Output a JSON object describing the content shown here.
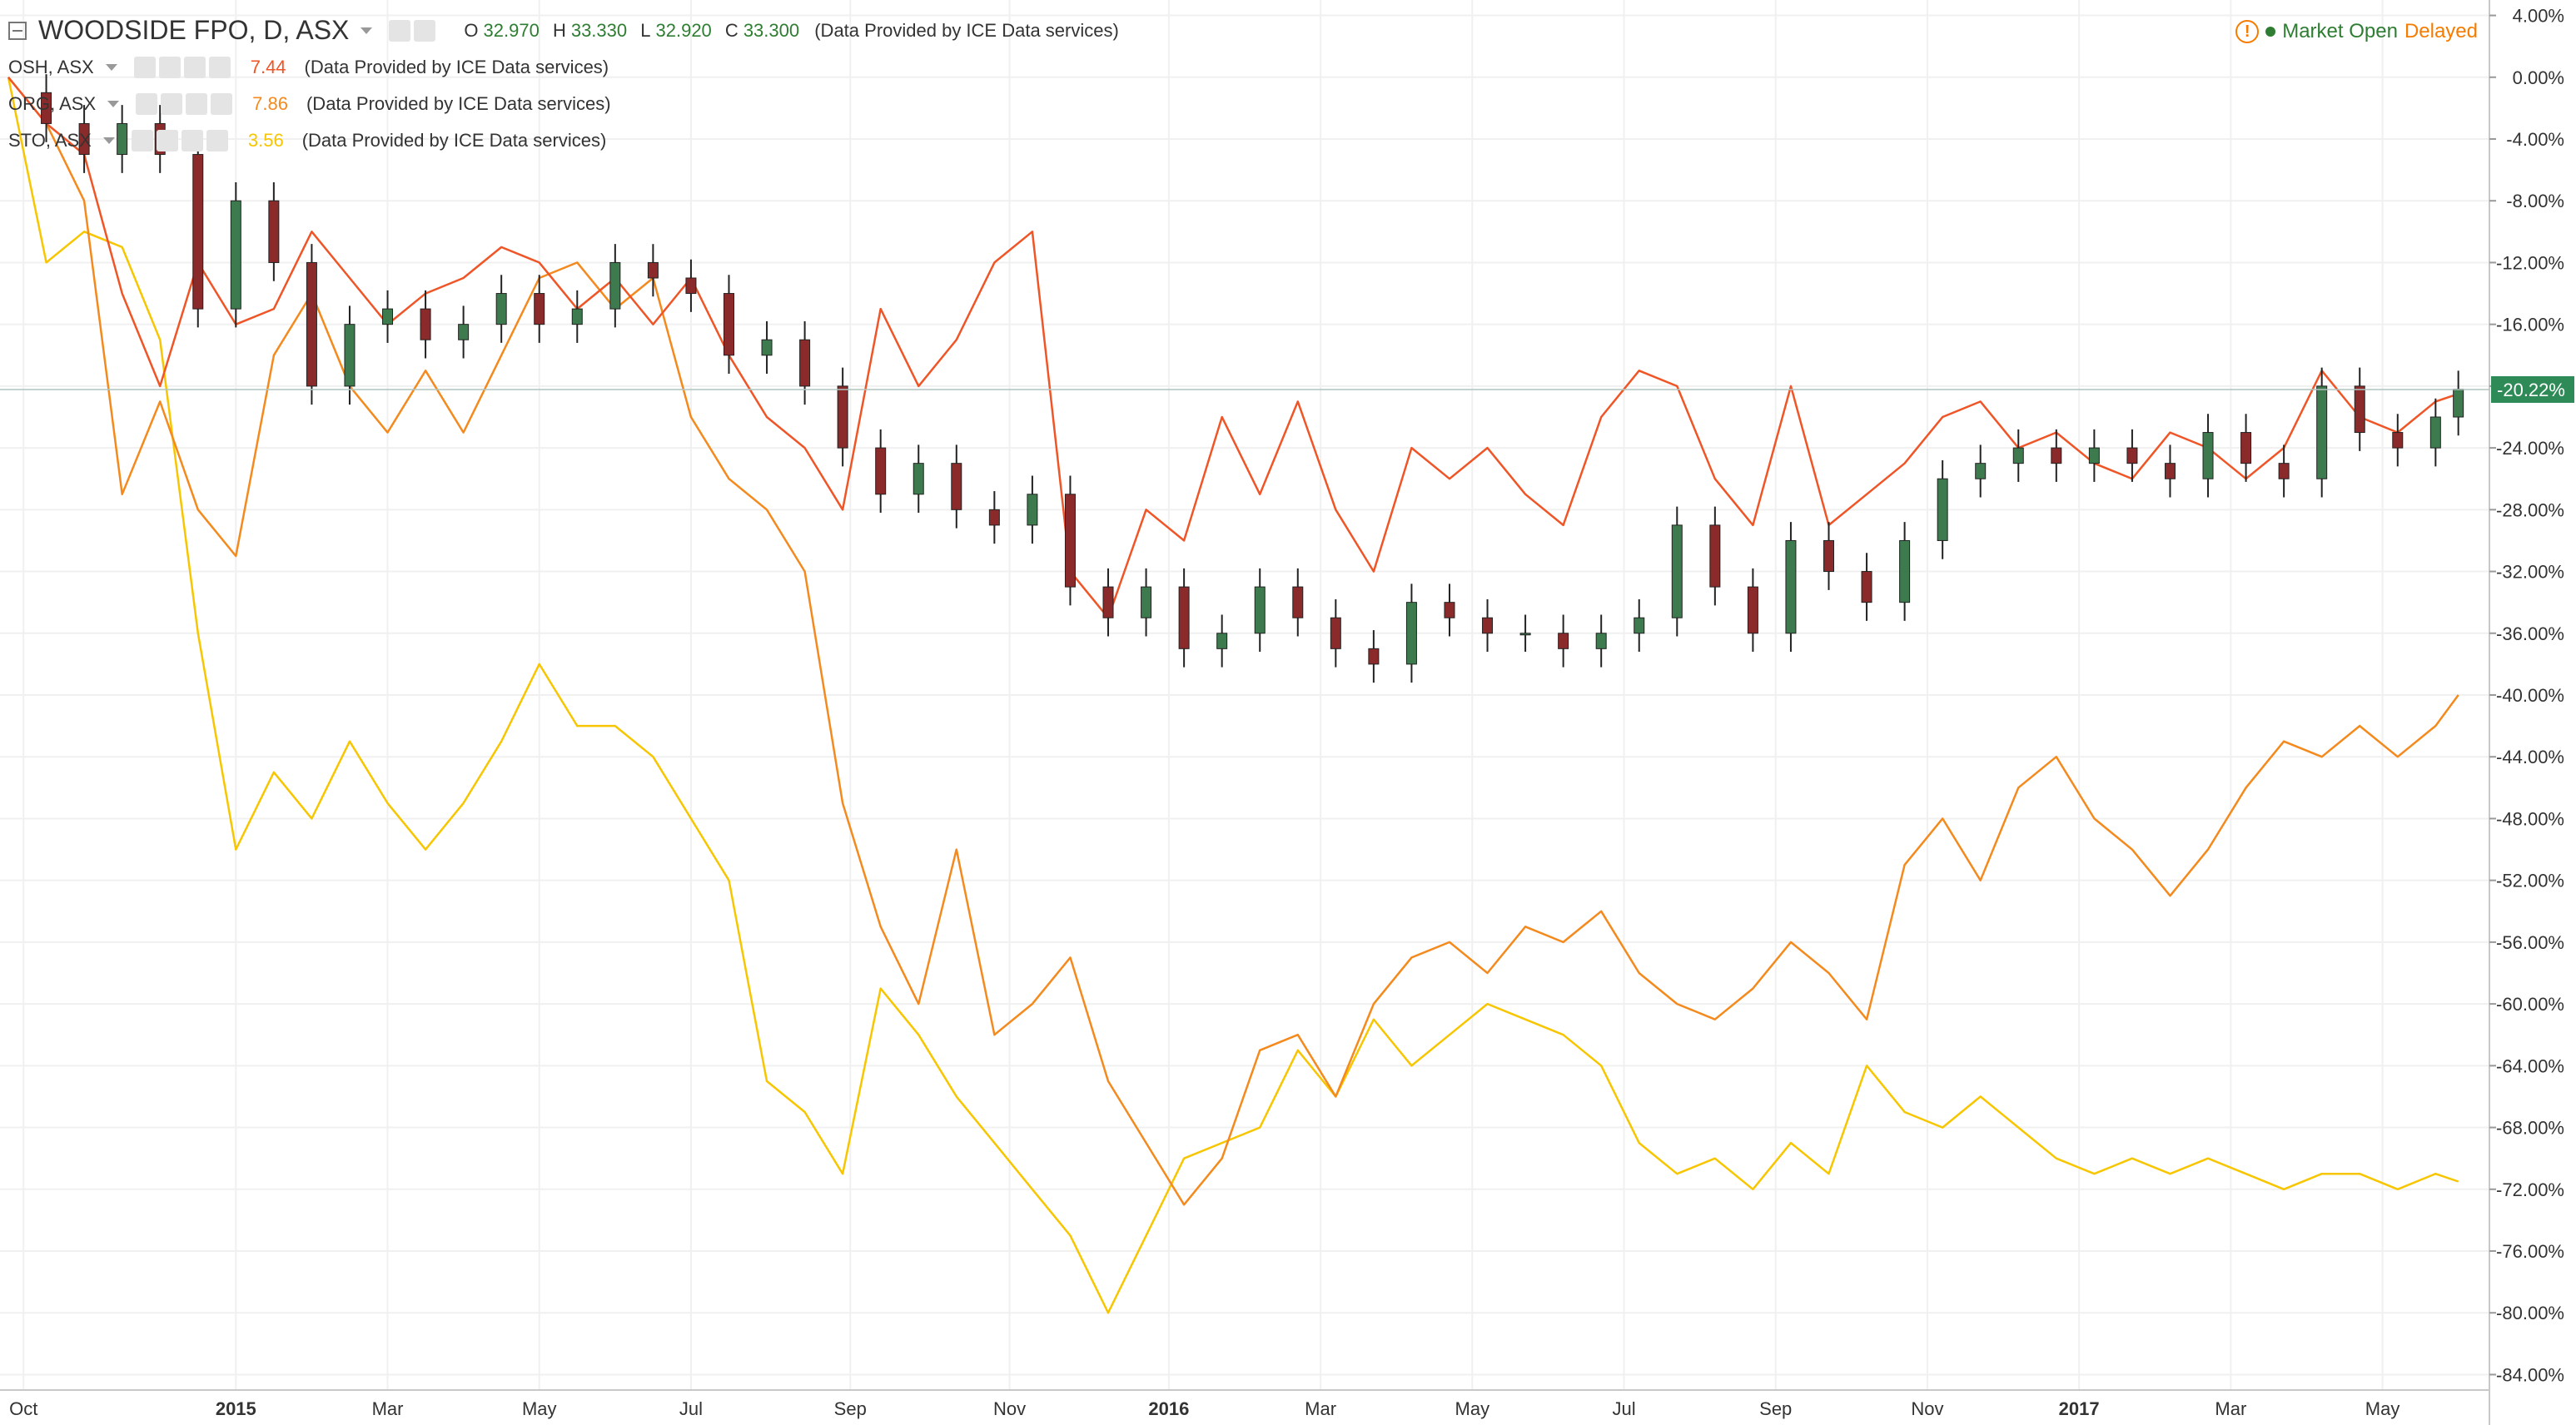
{
  "colors": {
    "accent_green": "#2e7d32",
    "up_candle": "#3d7a4e",
    "down_candle": "#8b2a2a",
    "osh_line": "#ef5526",
    "org_line": "#f48a1d",
    "sto_line": "#f7c600",
    "grid": "#f0f0f0"
  },
  "header": {
    "symbol": "WOODSIDE FPO, D, ASX",
    "ohlc": {
      "o_label": "O",
      "o": "32.970",
      "h_label": "H",
      "h": "33.330",
      "l_label": "L",
      "l": "32.920",
      "c_label": "C",
      "c": "33.300"
    },
    "provider": "(Data Provided by ICE Data services)"
  },
  "status": {
    "icon": "warning-icon",
    "market": "Market Open",
    "delayed": "Delayed"
  },
  "legend_series": [
    {
      "label": "OSH, ASX",
      "value": "7.44",
      "provider": "(Data Provided by ICE Data services)",
      "color": "#ef5526"
    },
    {
      "label": "ORG, ASX",
      "value": "7.86",
      "provider": "(Data Provided by ICE Data services)",
      "color": "#f48a1d"
    },
    {
      "label": "STO, ASX",
      "value": "3.56",
      "provider": "(Data Provided by ICE Data services)",
      "color": "#f7c600"
    }
  ],
  "chart_data": {
    "type": "line",
    "main_series_type": "candlestick",
    "y_unit": "percent",
    "ylim": [
      -85,
      5
    ],
    "y_ticks": [
      4,
      0,
      -4,
      -8,
      -12,
      -16,
      -20,
      -24,
      -28,
      -32,
      -36,
      -40,
      -44,
      -48,
      -52,
      -56,
      -60,
      -64,
      -68,
      -72,
      -76,
      -80,
      -84
    ],
    "y_tick_labels": [
      "4.00%",
      "0.00%",
      "-4.00%",
      "-8.00%",
      "-12.00%",
      "-16.00%",
      "-20.00%",
      "-24.00%",
      "-28.00%",
      "-32.00%",
      "-36.00%",
      "-40.00%",
      "-44.00%",
      "-48.00%",
      "-52.00%",
      "-56.00%",
      "-60.00%",
      "-64.00%",
      "-68.00%",
      "-72.00%",
      "-76.00%",
      "-80.00%",
      "-84.00%"
    ],
    "x_range": [
      0,
      32.6
    ],
    "x_tick_positions": [
      0.2,
      3.0,
      5.0,
      7.0,
      9.0,
      11.1,
      13.2,
      15.3,
      17.3,
      19.3,
      21.3,
      23.3,
      25.3,
      27.3,
      29.3,
      31.3
    ],
    "x_tick_labels": [
      "Oct",
      "2015",
      "Mar",
      "May",
      "Jul",
      "Sep",
      "Nov",
      "2016",
      "Mar",
      "May",
      "Jul",
      "Sep",
      "Nov",
      "2017",
      "Mar",
      "May"
    ],
    "x_bold_labels": [
      "2015",
      "2016",
      "2017"
    ],
    "current_label": "-20.22%",
    "current_value": -20.22,
    "legend_placement": "top-left",
    "grid": true,
    "series": [
      {
        "name": "WOODSIDE FPO, D, ASX",
        "kind": "candles",
        "x": [
          0,
          0.5,
          1,
          1.5,
          2,
          2.5,
          3,
          3.5,
          4,
          4.5,
          5,
          5.5,
          6,
          6.5,
          7,
          7.5,
          8,
          8.5,
          9,
          9.5,
          10,
          10.5,
          11,
          11.5,
          12,
          12.5,
          13,
          13.5,
          14,
          14.5,
          15,
          15.5,
          16,
          16.5,
          17,
          17.5,
          18,
          18.5,
          19,
          19.5,
          20,
          20.5,
          21,
          21.5,
          22,
          22.5,
          23,
          23.5,
          24,
          24.5,
          25,
          25.5,
          26,
          26.5,
          27,
          27.5,
          28,
          28.5,
          29,
          29.5,
          30,
          30.5,
          31,
          31.5,
          32,
          32.3
        ],
        "values": [
          -1,
          -3,
          -5,
          -3,
          -5,
          -15,
          -8,
          -12,
          -20,
          -16,
          -15,
          -17,
          -16,
          -14,
          -16,
          -15,
          -12,
          -13,
          -14,
          -18,
          -17,
          -20,
          -24,
          -27,
          -25,
          -28,
          -29,
          -27,
          -33,
          -35,
          -33,
          -37,
          -36,
          -33,
          -35,
          -37,
          -38,
          -34,
          -35,
          -36,
          -36,
          -37,
          -36,
          -35,
          -29,
          -33,
          -36,
          -30,
          -32,
          -34,
          -30,
          -26,
          -25,
          -24,
          -25,
          -24,
          -25,
          -26,
          -23,
          -25,
          -26,
          -20,
          -23,
          -24,
          -22,
          -20.2
        ]
      },
      {
        "name": "OSH, ASX",
        "kind": "line",
        "color": "#ef5526",
        "x": [
          0,
          0.5,
          1,
          1.5,
          2,
          2.5,
          3,
          3.5,
          4,
          4.5,
          5,
          5.5,
          6,
          6.5,
          7,
          7.5,
          8,
          8.5,
          9,
          9.5,
          10,
          10.5,
          11,
          11.5,
          12,
          12.5,
          13,
          13.5,
          14,
          14.5,
          15,
          15.5,
          16,
          16.5,
          17,
          17.5,
          18,
          18.5,
          19,
          19.5,
          20,
          20.5,
          21,
          21.5,
          22,
          22.5,
          23,
          23.5,
          24,
          24.5,
          25,
          25.5,
          26,
          26.5,
          27,
          27.5,
          28,
          28.5,
          29,
          29.5,
          30,
          30.5,
          31,
          31.5,
          32,
          32.3
        ],
        "values": [
          0,
          -3,
          -5,
          -14,
          -20,
          -12,
          -16,
          -15,
          -10,
          -13,
          -16,
          -14,
          -13,
          -11,
          -12,
          -15,
          -13,
          -16,
          -13,
          -18,
          -22,
          -24,
          -28,
          -15,
          -20,
          -17,
          -12,
          -10,
          -32,
          -35,
          -28,
          -30,
          -22,
          -27,
          -21,
          -28,
          -32,
          -24,
          -26,
          -24,
          -27,
          -29,
          -22,
          -19,
          -20,
          -26,
          -29,
          -20,
          -29,
          -27,
          -25,
          -22,
          -21,
          -24,
          -23,
          -25,
          -26,
          -23,
          -24,
          -26,
          -24,
          -19,
          -22,
          -23,
          -21,
          -20.5
        ]
      },
      {
        "name": "ORG, ASX",
        "kind": "line",
        "color": "#f48a1d",
        "x": [
          0,
          0.5,
          1,
          1.5,
          2,
          2.5,
          3,
          3.5,
          4,
          4.5,
          5,
          5.5,
          6,
          6.5,
          7,
          7.5,
          8,
          8.5,
          9,
          9.5,
          10,
          10.5,
          11,
          11.5,
          12,
          12.5,
          13,
          13.5,
          14,
          14.5,
          15,
          15.5,
          16,
          16.5,
          17,
          17.5,
          18,
          18.5,
          19,
          19.5,
          20,
          20.5,
          21,
          21.5,
          22,
          22.5,
          23,
          23.5,
          24,
          24.5,
          25,
          25.5,
          26,
          26.5,
          27,
          27.5,
          28,
          28.5,
          29,
          29.5,
          30,
          30.5,
          31,
          31.5,
          32,
          32.3
        ],
        "values": [
          0,
          -3,
          -8,
          -27,
          -21,
          -28,
          -31,
          -18,
          -14,
          -20,
          -23,
          -19,
          -23,
          -18,
          -13,
          -12,
          -15,
          -13,
          -22,
          -26,
          -28,
          -32,
          -47,
          -55,
          -60,
          -50,
          -62,
          -60,
          -57,
          -65,
          -69,
          -73,
          -70,
          -63,
          -62,
          -66,
          -60,
          -57,
          -56,
          -58,
          -55,
          -56,
          -54,
          -58,
          -60,
          -61,
          -59,
          -56,
          -58,
          -61,
          -51,
          -48,
          -52,
          -46,
          -44,
          -48,
          -50,
          -53,
          -50,
          -46,
          -43,
          -44,
          -42,
          -44,
          -42,
          -40
        ]
      },
      {
        "name": "STO, ASX",
        "kind": "line",
        "color": "#f7c600",
        "x": [
          0,
          0.5,
          1,
          1.5,
          2,
          2.5,
          3,
          3.5,
          4,
          4.5,
          5,
          5.5,
          6,
          6.5,
          7,
          7.5,
          8,
          8.5,
          9,
          9.5,
          10,
          10.5,
          11,
          11.5,
          12,
          12.5,
          13,
          13.5,
          14,
          14.5,
          15,
          15.5,
          16,
          16.5,
          17,
          17.5,
          18,
          18.5,
          19,
          19.5,
          20,
          20.5,
          21,
          21.5,
          22,
          22.5,
          23,
          23.5,
          24,
          24.5,
          25,
          25.5,
          26,
          26.5,
          27,
          27.5,
          28,
          28.5,
          29,
          29.5,
          30,
          30.5,
          31,
          31.5,
          32,
          32.3
        ],
        "values": [
          0,
          -12,
          -10,
          -11,
          -17,
          -36,
          -50,
          -45,
          -48,
          -43,
          -47,
          -50,
          -47,
          -43,
          -38,
          -42,
          -42,
          -44,
          -48,
          -52,
          -65,
          -67,
          -71,
          -59,
          -62,
          -66,
          -69,
          -72,
          -75,
          -80,
          -75,
          -70,
          -69,
          -68,
          -63,
          -66,
          -61,
          -64,
          -62,
          -60,
          -61,
          -62,
          -64,
          -69,
          -71,
          -70,
          -72,
          -69,
          -71,
          -64,
          -67,
          -68,
          -66,
          -68,
          -70,
          -71,
          -70,
          -71,
          -70,
          -71,
          -72,
          -71,
          -71,
          -72,
          -71,
          -71.5
        ]
      }
    ]
  }
}
